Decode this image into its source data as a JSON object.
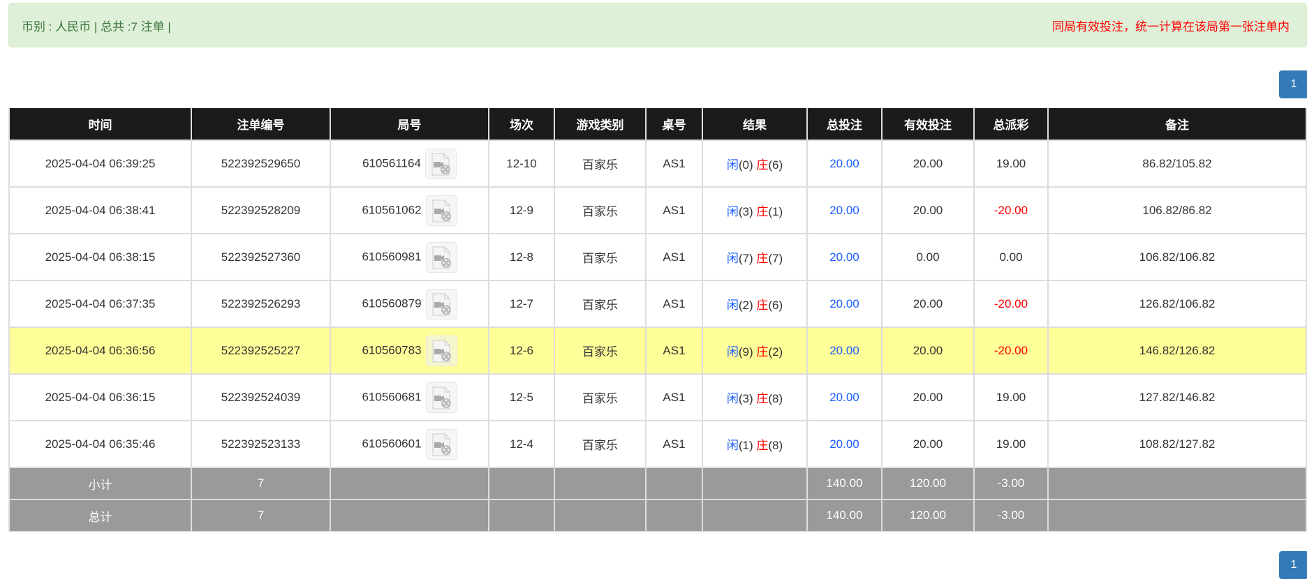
{
  "summary": {
    "left": "币别 : 人民币 | 总共 :7 注单 |",
    "notice": "同局有效投注，统一计算在该局第一张注单内"
  },
  "pagination": {
    "current": "1"
  },
  "table": {
    "headers": [
      "时间",
      "注单编号",
      "局号",
      "场次",
      "游戏类别",
      "桌号",
      "结果",
      "总投注",
      "有效投注",
      "总派彩",
      "备注"
    ],
    "rows": [
      {
        "time": "2025-04-04 06:39:25",
        "bet_id": "522392529650",
        "round": "610561164",
        "session": "12-10",
        "game": "百家乐",
        "table": "AS1",
        "player_label": "闲",
        "player": "(0)",
        "banker_label": "庄",
        "banker": "(6)",
        "total": "20.00",
        "valid": "20.00",
        "payout": "19.00",
        "payout_neg": false,
        "note": "86.82/105.82",
        "highlight": false
      },
      {
        "time": "2025-04-04 06:38:41",
        "bet_id": "522392528209",
        "round": "610561062",
        "session": "12-9",
        "game": "百家乐",
        "table": "AS1",
        "player_label": "闲",
        "player": "(3)",
        "banker_label": "庄",
        "banker": "(1)",
        "total": "20.00",
        "valid": "20.00",
        "payout": "-20.00",
        "payout_neg": true,
        "note": "106.82/86.82",
        "highlight": false
      },
      {
        "time": "2025-04-04 06:38:15",
        "bet_id": "522392527360",
        "round": "610560981",
        "session": "12-8",
        "game": "百家乐",
        "table": "AS1",
        "player_label": "闲",
        "player": "(7)",
        "banker_label": "庄",
        "banker": "(7)",
        "total": "20.00",
        "valid": "0.00",
        "payout": "0.00",
        "payout_neg": false,
        "note": "106.82/106.82",
        "highlight": false
      },
      {
        "time": "2025-04-04 06:37:35",
        "bet_id": "522392526293",
        "round": "610560879",
        "session": "12-7",
        "game": "百家乐",
        "table": "AS1",
        "player_label": "闲",
        "player": "(2)",
        "banker_label": "庄",
        "banker": "(6)",
        "total": "20.00",
        "valid": "20.00",
        "payout": "-20.00",
        "payout_neg": true,
        "note": "126.82/106.82",
        "highlight": false
      },
      {
        "time": "2025-04-04 06:36:56",
        "bet_id": "522392525227",
        "round": "610560783",
        "session": "12-6",
        "game": "百家乐",
        "table": "AS1",
        "player_label": "闲",
        "player": "(9)",
        "banker_label": "庄",
        "banker": "(2)",
        "total": "20.00",
        "valid": "20.00",
        "payout": "-20.00",
        "payout_neg": true,
        "note": "146.82/126.82",
        "highlight": true
      },
      {
        "time": "2025-04-04 06:36:15",
        "bet_id": "522392524039",
        "round": "610560681",
        "session": "12-5",
        "game": "百家乐",
        "table": "AS1",
        "player_label": "闲",
        "player": "(3)",
        "banker_label": "庄",
        "banker": "(8)",
        "total": "20.00",
        "valid": "20.00",
        "payout": "19.00",
        "payout_neg": false,
        "note": "127.82/146.82",
        "highlight": false
      },
      {
        "time": "2025-04-04 06:35:46",
        "bet_id": "522392523133",
        "round": "610560601",
        "session": "12-4",
        "game": "百家乐",
        "table": "AS1",
        "player_label": "闲",
        "player": "(1)",
        "banker_label": "庄",
        "banker": "(8)",
        "total": "20.00",
        "valid": "20.00",
        "payout": "19.00",
        "payout_neg": false,
        "note": "108.82/127.82",
        "highlight": false
      }
    ],
    "subtotal": {
      "label": "小计",
      "count": "7",
      "total": "140.00",
      "valid": "120.00",
      "payout": "-3.00"
    },
    "grand_total": {
      "label": "总计",
      "count": "7",
      "total": "140.00",
      "valid": "120.00",
      "payout": "-3.00"
    }
  },
  "colors": {
    "player": "#1a5fff",
    "banker": "#ff0000",
    "highlight": "#ffff99",
    "header": "#1b1b1b",
    "summary_row": "#9a9a9a",
    "accent": "#337ab7"
  }
}
